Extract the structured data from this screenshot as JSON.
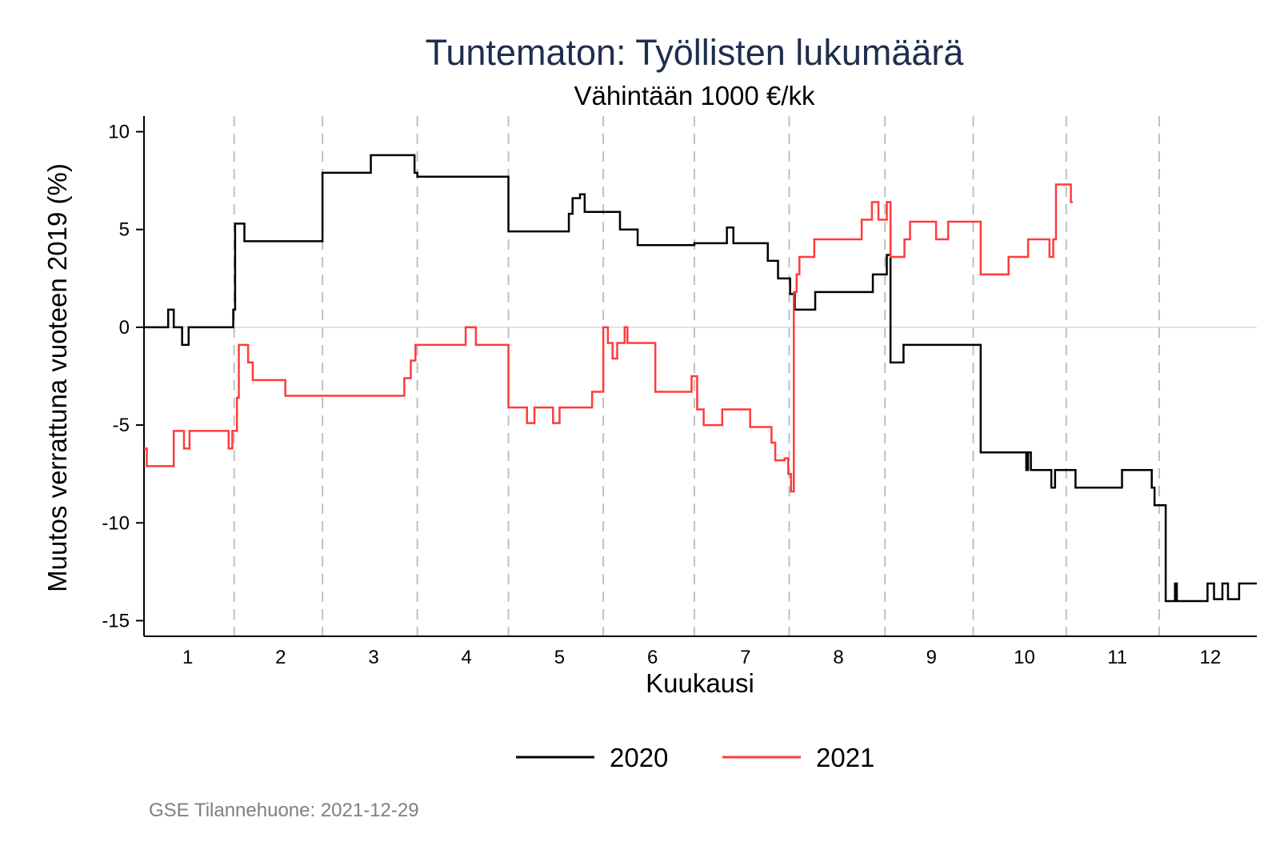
{
  "chart_data": {
    "type": "line",
    "title": "Tuntematon: Työllisten lukumäärä",
    "subtitle": "Vähintään 1000 €/kk",
    "xlabel": "Kuukausi",
    "ylabel": "Muutos verrattuna vuoteen 2019 (%)",
    "xlim": [
      0.53,
      12.5
    ],
    "ylim": [
      -15.8,
      10.8
    ],
    "x_ticks": [
      1,
      2,
      3,
      4,
      5,
      6,
      7,
      8,
      9,
      10,
      11,
      12
    ],
    "x_tick_labels": [
      "1",
      "2",
      "3",
      "4",
      "5",
      "6",
      "7",
      "8",
      "9",
      "10",
      "11",
      "12"
    ],
    "y_ticks": [
      10,
      5,
      0,
      -5,
      -10,
      -15
    ],
    "y_tick_labels": [
      "10",
      "5",
      "0",
      "-5",
      "-10",
      "-15"
    ],
    "vertical_guides": [
      1.5,
      2.45,
      3.47,
      4.45,
      5.47,
      6.45,
      7.47,
      8.5,
      9.45,
      10.45,
      11.45
    ],
    "zero_line": 0,
    "legend_position": "bottom",
    "grid": false,
    "series": [
      {
        "name": "2020",
        "color": "#000000",
        "step_points": [
          [
            0.53,
            0
          ],
          [
            0.79,
            0
          ],
          [
            0.79,
            0.9
          ],
          [
            0.85,
            0.9
          ],
          [
            0.85,
            0
          ],
          [
            0.94,
            0
          ],
          [
            0.94,
            -0.9
          ],
          [
            1.01,
            -0.9
          ],
          [
            1.01,
            0
          ],
          [
            1.49,
            0
          ],
          [
            1.49,
            0.9
          ],
          [
            1.51,
            0.9
          ],
          [
            1.51,
            5.3
          ],
          [
            1.61,
            5.3
          ],
          [
            1.61,
            4.4
          ],
          [
            2.45,
            4.4
          ],
          [
            2.45,
            7.9
          ],
          [
            2.97,
            7.9
          ],
          [
            2.97,
            8.8
          ],
          [
            3.44,
            8.8
          ],
          [
            3.44,
            7.9
          ],
          [
            3.47,
            7.9
          ],
          [
            3.47,
            7.7
          ],
          [
            4.45,
            7.7
          ],
          [
            4.45,
            4.9
          ],
          [
            5.1,
            4.9
          ],
          [
            5.1,
            5.8
          ],
          [
            5.14,
            5.8
          ],
          [
            5.14,
            6.6
          ],
          [
            5.22,
            6.6
          ],
          [
            5.22,
            6.8
          ],
          [
            5.27,
            6.8
          ],
          [
            5.27,
            5.9
          ],
          [
            5.65,
            5.9
          ],
          [
            5.65,
            5.0
          ],
          [
            5.84,
            5.0
          ],
          [
            5.84,
            4.2
          ],
          [
            6.45,
            4.2
          ],
          [
            6.45,
            4.3
          ],
          [
            6.8,
            4.3
          ],
          [
            6.8,
            5.1
          ],
          [
            6.87,
            5.1
          ],
          [
            6.87,
            4.3
          ],
          [
            7.24,
            4.3
          ],
          [
            7.24,
            3.4
          ],
          [
            7.35,
            3.4
          ],
          [
            7.35,
            2.5
          ],
          [
            7.48,
            2.5
          ],
          [
            7.48,
            1.7
          ],
          [
            7.53,
            1.7
          ],
          [
            7.53,
            0.9
          ],
          [
            7.75,
            0.9
          ],
          [
            7.75,
            1.8
          ],
          [
            8.37,
            1.8
          ],
          [
            8.37,
            2.7
          ],
          [
            8.52,
            2.7
          ],
          [
            8.52,
            3.7
          ],
          [
            8.56,
            3.7
          ],
          [
            8.56,
            -1.8
          ],
          [
            8.7,
            -1.8
          ],
          [
            8.7,
            -0.9
          ],
          [
            9.53,
            -0.9
          ],
          [
            9.53,
            -6.4
          ],
          [
            10.02,
            -6.4
          ],
          [
            10.02,
            -7.3
          ],
          [
            10.04,
            -7.3
          ],
          [
            10.04,
            -6.4
          ],
          [
            10.07,
            -6.4
          ],
          [
            10.07,
            -7.3
          ],
          [
            10.29,
            -7.3
          ],
          [
            10.29,
            -8.2
          ],
          [
            10.33,
            -8.2
          ],
          [
            10.33,
            -7.3
          ],
          [
            10.55,
            -7.3
          ],
          [
            10.55,
            -8.2
          ],
          [
            11.05,
            -8.2
          ],
          [
            11.05,
            -7.3
          ],
          [
            11.37,
            -7.3
          ],
          [
            11.37,
            -8.2
          ],
          [
            11.4,
            -8.2
          ],
          [
            11.4,
            -9.1
          ],
          [
            11.52,
            -9.1
          ],
          [
            11.52,
            -14.0
          ],
          [
            11.62,
            -14.0
          ],
          [
            11.62,
            -13.1
          ],
          [
            11.64,
            -13.1
          ],
          [
            11.64,
            -14.0
          ],
          [
            11.97,
            -14.0
          ],
          [
            11.97,
            -13.1
          ],
          [
            12.04,
            -13.1
          ],
          [
            12.04,
            -13.9
          ],
          [
            12.13,
            -13.9
          ],
          [
            12.13,
            -13.1
          ],
          [
            12.19,
            -13.1
          ],
          [
            12.19,
            -13.9
          ],
          [
            12.31,
            -13.9
          ],
          [
            12.31,
            -13.1
          ],
          [
            12.5,
            -13.1
          ]
        ]
      },
      {
        "name": "2021",
        "color": "#ff3b3b",
        "step_points": [
          [
            0.53,
            -6.2
          ],
          [
            0.56,
            -6.2
          ],
          [
            0.56,
            -7.1
          ],
          [
            0.85,
            -7.1
          ],
          [
            0.85,
            -5.3
          ],
          [
            0.96,
            -5.3
          ],
          [
            0.96,
            -6.2
          ],
          [
            1.02,
            -6.2
          ],
          [
            1.02,
            -5.3
          ],
          [
            1.44,
            -5.3
          ],
          [
            1.44,
            -6.2
          ],
          [
            1.48,
            -6.2
          ],
          [
            1.48,
            -5.3
          ],
          [
            1.53,
            -5.3
          ],
          [
            1.53,
            -3.6
          ],
          [
            1.55,
            -3.6
          ],
          [
            1.55,
            -0.9
          ],
          [
            1.65,
            -0.9
          ],
          [
            1.65,
            -1.8
          ],
          [
            1.7,
            -1.8
          ],
          [
            1.7,
            -2.7
          ],
          [
            2.05,
            -2.7
          ],
          [
            2.05,
            -3.5
          ],
          [
            3.33,
            -3.5
          ],
          [
            3.33,
            -2.6
          ],
          [
            3.4,
            -2.6
          ],
          [
            3.4,
            -1.7
          ],
          [
            3.45,
            -1.7
          ],
          [
            3.45,
            -0.9
          ],
          [
            3.99,
            -0.9
          ],
          [
            3.99,
            0
          ],
          [
            4.1,
            0
          ],
          [
            4.1,
            -0.9
          ],
          [
            4.45,
            -0.9
          ],
          [
            4.45,
            -4.1
          ],
          [
            4.65,
            -4.1
          ],
          [
            4.65,
            -4.9
          ],
          [
            4.73,
            -4.9
          ],
          [
            4.73,
            -4.1
          ],
          [
            4.93,
            -4.1
          ],
          [
            4.93,
            -4.9
          ],
          [
            5.0,
            -4.9
          ],
          [
            5.0,
            -4.1
          ],
          [
            5.35,
            -4.1
          ],
          [
            5.35,
            -3.3
          ],
          [
            5.47,
            -3.3
          ],
          [
            5.47,
            0
          ],
          [
            5.52,
            0
          ],
          [
            5.52,
            -0.8
          ],
          [
            5.57,
            -0.8
          ],
          [
            5.57,
            -1.6
          ],
          [
            5.62,
            -1.6
          ],
          [
            5.62,
            -0.8
          ],
          [
            5.7,
            -0.8
          ],
          [
            5.7,
            0
          ],
          [
            5.73,
            0
          ],
          [
            5.73,
            -0.8
          ],
          [
            6.03,
            -0.8
          ],
          [
            6.03,
            -3.3
          ],
          [
            6.42,
            -3.3
          ],
          [
            6.42,
            -2.5
          ],
          [
            6.48,
            -2.5
          ],
          [
            6.48,
            -4.2
          ],
          [
            6.55,
            -4.2
          ],
          [
            6.55,
            -5.0
          ],
          [
            6.75,
            -5.0
          ],
          [
            6.75,
            -4.2
          ],
          [
            7.05,
            -4.2
          ],
          [
            7.05,
            -5.1
          ],
          [
            7.28,
            -5.1
          ],
          [
            7.28,
            -5.9
          ],
          [
            7.32,
            -5.9
          ],
          [
            7.32,
            -6.8
          ],
          [
            7.42,
            -6.8
          ],
          [
            7.42,
            -6.7
          ],
          [
            7.46,
            -6.7
          ],
          [
            7.46,
            -7.5
          ],
          [
            7.49,
            -7.5
          ],
          [
            7.49,
            -8.4
          ],
          [
            7.52,
            -8.4
          ],
          [
            7.52,
            1.8
          ],
          [
            7.55,
            1.8
          ],
          [
            7.55,
            2.7
          ],
          [
            7.58,
            2.7
          ],
          [
            7.58,
            3.6
          ],
          [
            7.74,
            3.6
          ],
          [
            7.74,
            4.5
          ],
          [
            8.25,
            4.5
          ],
          [
            8.25,
            5.5
          ],
          [
            8.36,
            5.5
          ],
          [
            8.36,
            6.4
          ],
          [
            8.43,
            6.4
          ],
          [
            8.43,
            5.5
          ],
          [
            8.52,
            5.5
          ],
          [
            8.52,
            6.4
          ],
          [
            8.56,
            6.4
          ],
          [
            8.56,
            3.6
          ],
          [
            8.71,
            3.6
          ],
          [
            8.71,
            4.5
          ],
          [
            8.77,
            4.5
          ],
          [
            8.77,
            5.4
          ],
          [
            9.05,
            5.4
          ],
          [
            9.05,
            4.5
          ],
          [
            9.18,
            4.5
          ],
          [
            9.18,
            5.4
          ],
          [
            9.53,
            5.4
          ],
          [
            9.53,
            2.7
          ],
          [
            9.83,
            2.7
          ],
          [
            9.83,
            3.6
          ],
          [
            10.04,
            3.6
          ],
          [
            10.04,
            4.5
          ],
          [
            10.27,
            4.5
          ],
          [
            10.27,
            3.6
          ],
          [
            10.31,
            3.6
          ],
          [
            10.31,
            4.5
          ],
          [
            10.34,
            4.5
          ],
          [
            10.34,
            7.3
          ],
          [
            10.5,
            7.3
          ],
          [
            10.5,
            6.4
          ],
          [
            10.52,
            6.4
          ]
        ]
      }
    ]
  },
  "footer": "GSE Tilannehuone: 2021-12-29",
  "colors": {
    "title": "#1f2e4d",
    "footer": "#808080",
    "axis": "#000000",
    "guide": "#c0c0c0",
    "zero_line": "#e2e2e2"
  }
}
